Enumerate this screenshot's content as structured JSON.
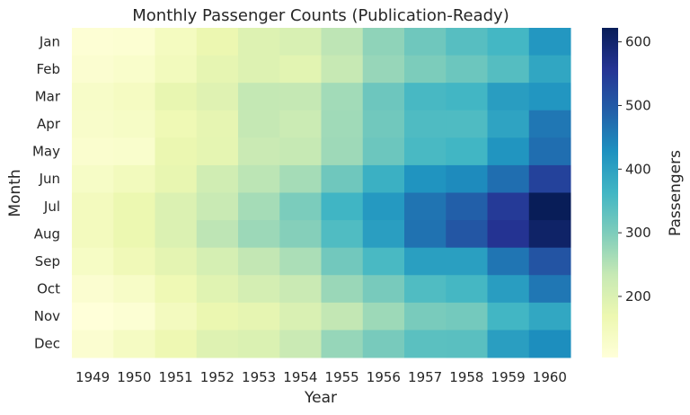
{
  "chart_data": {
    "type": "heatmap",
    "title": "Monthly Passenger Counts (Publication-Ready)",
    "xlabel": "Year",
    "ylabel": "Month",
    "x": [
      1949,
      1950,
      1951,
      1952,
      1953,
      1954,
      1955,
      1956,
      1957,
      1958,
      1959,
      1960
    ],
    "y": [
      "Jan",
      "Feb",
      "Mar",
      "Apr",
      "May",
      "Jun",
      "Jul",
      "Aug",
      "Sep",
      "Oct",
      "Nov",
      "Dec"
    ],
    "values": [
      [
        112,
        115,
        145,
        171,
        196,
        204,
        242,
        284,
        315,
        340,
        360,
        417
      ],
      [
        118,
        126,
        150,
        180,
        196,
        188,
        233,
        277,
        301,
        318,
        342,
        391
      ],
      [
        132,
        141,
        178,
        193,
        236,
        235,
        267,
        317,
        356,
        362,
        406,
        419
      ],
      [
        129,
        135,
        163,
        181,
        235,
        227,
        269,
        313,
        348,
        348,
        396,
        461
      ],
      [
        121,
        125,
        172,
        183,
        229,
        234,
        270,
        318,
        355,
        363,
        420,
        472
      ],
      [
        135,
        149,
        178,
        218,
        243,
        264,
        315,
        374,
        422,
        435,
        472,
        535
      ],
      [
        148,
        170,
        199,
        230,
        264,
        302,
        364,
        413,
        465,
        491,
        548,
        622
      ],
      [
        148,
        170,
        199,
        242,
        272,
        293,
        347,
        405,
        467,
        505,
        559,
        606
      ],
      [
        136,
        158,
        184,
        209,
        237,
        259,
        312,
        355,
        404,
        404,
        463,
        508
      ],
      [
        119,
        133,
        162,
        191,
        211,
        229,
        274,
        306,
        347,
        359,
        407,
        461
      ],
      [
        104,
        114,
        146,
        172,
        180,
        203,
        237,
        271,
        305,
        310,
        362,
        390
      ],
      [
        118,
        140,
        166,
        194,
        201,
        229,
        278,
        306,
        336,
        337,
        405,
        432
      ]
    ],
    "colormap": "YlGnBu",
    "colorbar": {
      "label": "Passengers",
      "ticks": [
        200,
        300,
        400,
        500,
        600
      ],
      "range": [
        104,
        622
      ]
    },
    "grid": false
  }
}
